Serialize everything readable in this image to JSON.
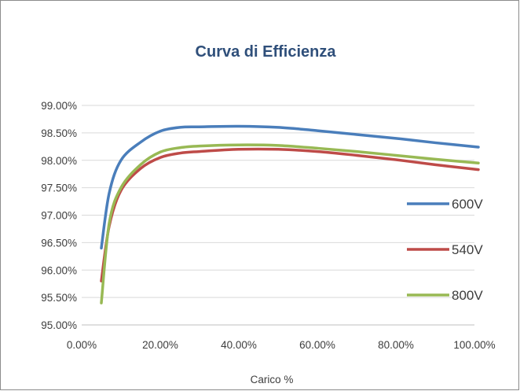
{
  "chart_data": {
    "type": "line",
    "title": "Curva di Efficienza",
    "xlabel": "Carico %",
    "ylabel": "",
    "xlim": [
      0,
      1.0
    ],
    "ylim": [
      0.95,
      0.99
    ],
    "x_ticks": [
      "0.00%",
      "20.00%",
      "40.00%",
      "60.00%",
      "80.00%",
      "100.00%"
    ],
    "y_ticks": [
      "95.00%",
      "95.50%",
      "96.00%",
      "96.50%",
      "97.00%",
      "97.50%",
      "98.00%",
      "98.50%",
      "99.00%"
    ],
    "grid": "horizontal",
    "legend_position": "right",
    "series": [
      {
        "name": "600V",
        "color": "#4a7ebb",
        "x": [
          0.05,
          0.07,
          0.1,
          0.15,
          0.2,
          0.25,
          0.3,
          0.4,
          0.5,
          0.6,
          0.7,
          0.8,
          0.9,
          1.01
        ],
        "y": [
          0.964,
          0.974,
          0.98,
          0.9833,
          0.9853,
          0.986,
          0.9861,
          0.9862,
          0.986,
          0.9854,
          0.9847,
          0.984,
          0.9832,
          0.9824
        ]
      },
      {
        "name": "540V",
        "color": "#be4b48",
        "x": [
          0.05,
          0.07,
          0.1,
          0.15,
          0.2,
          0.25,
          0.3,
          0.4,
          0.5,
          0.6,
          0.7,
          0.8,
          0.9,
          1.01
        ],
        "y": [
          0.958,
          0.968,
          0.9745,
          0.9785,
          0.9805,
          0.9813,
          0.9816,
          0.982,
          0.982,
          0.9816,
          0.9809,
          0.9801,
          0.9792,
          0.9783
        ]
      },
      {
        "name": "800V",
        "color": "#98b954",
        "x": [
          0.05,
          0.07,
          0.1,
          0.15,
          0.2,
          0.25,
          0.3,
          0.4,
          0.5,
          0.6,
          0.7,
          0.8,
          0.9,
          1.01
        ],
        "y": [
          0.954,
          0.9685,
          0.975,
          0.9792,
          0.9815,
          0.9823,
          0.9826,
          0.9828,
          0.9827,
          0.9822,
          0.9816,
          0.9809,
          0.9802,
          0.9795
        ]
      }
    ]
  }
}
